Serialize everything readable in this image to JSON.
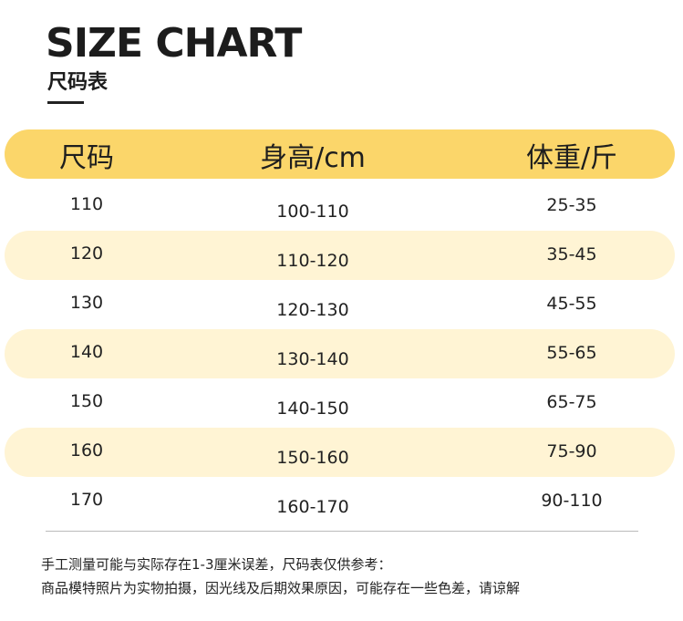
{
  "header": {
    "title": "SIZE CHART",
    "subtitle": "尺码表"
  },
  "table": {
    "columns": [
      "尺码",
      "身高/cm",
      "体重/斤"
    ],
    "rows": [
      [
        "110",
        "100-110",
        "25-35"
      ],
      [
        "120",
        "110-120",
        "35-45"
      ],
      [
        "130",
        "120-130",
        "45-55"
      ],
      [
        "140",
        "130-140",
        "55-65"
      ],
      [
        "150",
        "140-150",
        "65-75"
      ],
      [
        "160",
        "150-160",
        "75-90"
      ],
      [
        "170",
        "160-170",
        "90-110"
      ]
    ]
  },
  "notes": [
    "手工测量可能与实际存在1-3厘米误差，尺码表仅供参考：",
    "商品模特照片为实物拍摄，因光线及后期效果原因，可能存在一些色差，请谅解"
  ]
}
